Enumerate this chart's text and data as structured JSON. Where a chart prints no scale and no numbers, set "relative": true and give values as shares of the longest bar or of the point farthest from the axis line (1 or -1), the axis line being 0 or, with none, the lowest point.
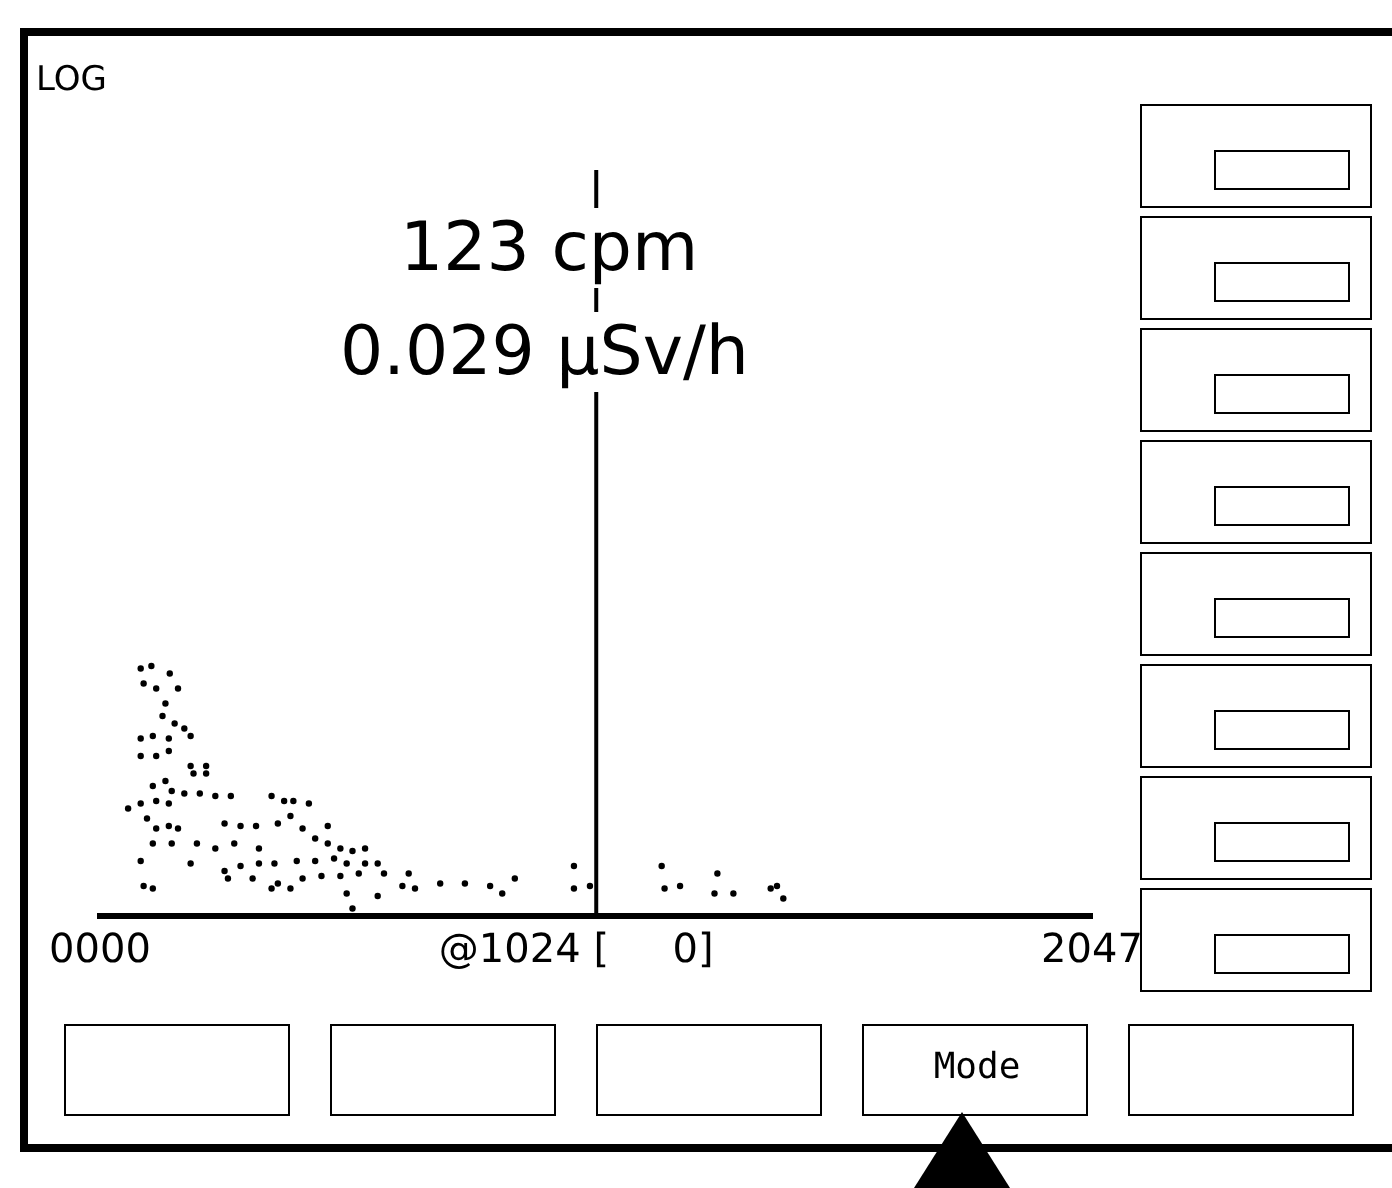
{
  "chart_data": {
    "type": "scatter",
    "relative": true,
    "marker": "circle",
    "grid": false,
    "legend": false,
    "tick_labels": "x",
    "xlim": [
      0,
      2047
    ],
    "xticks": [
      {
        "value": 0,
        "label": "0000"
      },
      2047
    ],
    "annotations": [
      "LOG",
      "123 cpm",
      "0.029 μSv/h",
      "Mode"
    ],
    "ref_lines": [
      {
        "axis": "x",
        "value": 1024,
        "label": "@1024 [     0]"
      }
    ],
    "series": [
      {
        "color": "#000000",
        "x": [
          84,
          106,
          144,
          90,
          116,
          161,
          135,
          129,
          154,
          84,
          109,
          142,
          174,
          187,
          84,
          116,
          142,
          187,
          219,
          193,
          219,
          135,
          109,
          148,
          174,
          58,
          84,
          116,
          142,
          206,
          238,
          270,
          354,
          380,
          399,
          431,
          97,
          116,
          142,
          161,
          109,
          148,
          200,
          257,
          290,
          322,
          367,
          393,
          418,
          470,
          444,
          277,
          328,
          238,
          470,
          496,
          521,
          547,
          187,
          84,
          257,
          290,
          328,
          360,
          406,
          444,
          483,
          509,
          547,
          573,
          90,
          109,
          264,
          315,
          367,
          418,
          457,
          496,
          534,
          586,
          637,
          624,
          650,
          702,
          753,
          805,
          830,
          856,
          509,
          521,
          573,
          354,
          393,
          978,
          978,
          1011,
          1159,
          1165,
          1197,
          1274,
          1268,
          1307,
          1384,
          1410,
          1397
        ],
        "values": [
          0.99,
          1.0,
          0.97,
          0.93,
          0.91,
          0.91,
          0.85,
          0.8,
          0.77,
          0.71,
          0.72,
          0.71,
          0.75,
          0.72,
          0.64,
          0.64,
          0.66,
          0.6,
          0.6,
          0.57,
          0.57,
          0.54,
          0.52,
          0.5,
          0.49,
          0.43,
          0.45,
          0.46,
          0.45,
          0.49,
          0.48,
          0.48,
          0.48,
          0.46,
          0.46,
          0.45,
          0.39,
          0.35,
          0.36,
          0.35,
          0.29,
          0.29,
          0.29,
          0.37,
          0.36,
          0.36,
          0.37,
          0.4,
          0.35,
          0.36,
          0.31,
          0.29,
          0.27,
          0.27,
          0.29,
          0.27,
          0.26,
          0.27,
          0.21,
          0.22,
          0.18,
          0.2,
          0.21,
          0.21,
          0.22,
          0.22,
          0.23,
          0.21,
          0.21,
          0.21,
          0.12,
          0.11,
          0.15,
          0.15,
          0.13,
          0.15,
          0.16,
          0.16,
          0.17,
          0.17,
          0.17,
          0.12,
          0.11,
          0.13,
          0.13,
          0.12,
          0.09,
          0.15,
          0.09,
          0.03,
          0.08,
          0.11,
          0.11,
          0.2,
          0.11,
          0.12,
          0.2,
          0.11,
          0.12,
          0.17,
          0.09,
          0.09,
          0.11,
          0.07,
          0.12
        ]
      }
    ]
  }
}
